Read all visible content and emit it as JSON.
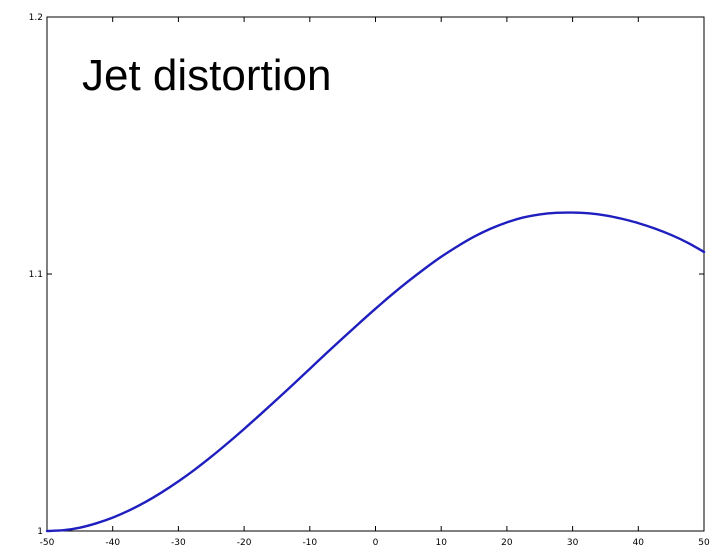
{
  "chart_data": {
    "type": "line",
    "title": "Jet distortion",
    "xlabel": "",
    "ylabel": "",
    "xlim": [
      -50,
      50
    ],
    "ylim": [
      1,
      1.2
    ],
    "x_ticks": [
      -50,
      -40,
      -30,
      -20,
      -10,
      0,
      10,
      20,
      30,
      40,
      50
    ],
    "y_ticks": [
      1,
      1.1,
      1.2
    ],
    "x_tick_labels": [
      "-50",
      "-40",
      "-30",
      "-20",
      "-10",
      "0",
      "10",
      "20",
      "30",
      "40",
      "50"
    ],
    "y_tick_labels": [
      "1",
      "1.1",
      "1.2"
    ],
    "grid": false,
    "series": [
      {
        "color": "#1f1fbf",
        "x": [
          -50,
          -47.5,
          -45,
          -42.5,
          -40,
          -37.5,
          -35,
          -32.5,
          -30,
          -27.5,
          -25,
          -22.5,
          -20,
          -17.5,
          -15,
          -12.5,
          -10,
          -7.5,
          -5,
          -2.5,
          0,
          2.5,
          5,
          7.5,
          10,
          12.5,
          15,
          17.5,
          20,
          22.5,
          25,
          27.5,
          30,
          32.5,
          35,
          37.5,
          40,
          42.5,
          45,
          47.5,
          50
        ],
        "y": [
          1.0,
          1.0003,
          1.0013,
          1.003,
          1.0052,
          1.008,
          1.0113,
          1.0151,
          1.0193,
          1.0239,
          1.0289,
          1.0342,
          1.0397,
          1.0454,
          1.0512,
          1.0571,
          1.0631,
          1.0691,
          1.075,
          1.0808,
          1.0865,
          1.092,
          1.0972,
          1.1021,
          1.1067,
          1.1108,
          1.1145,
          1.1176,
          1.1201,
          1.122,
          1.1232,
          1.1238,
          1.1239,
          1.1236,
          1.1228,
          1.1215,
          1.1198,
          1.1177,
          1.1152,
          1.1122,
          1.1086
        ]
      }
    ]
  }
}
